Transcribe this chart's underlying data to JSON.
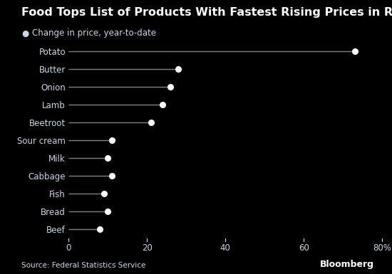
{
  "title": "Food Tops List of Products With Fastest Rising Prices in Russia",
  "subtitle_bullet": "●",
  "subtitle_text": " Change in price, year-to-date",
  "categories": [
    "Potato",
    "Butter",
    "Onion",
    "Lamb",
    "Beetroot",
    "Sour cream",
    "Milk",
    "Cabbage",
    "Fish",
    "Bread",
    "Beef"
  ],
  "values": [
    73,
    28,
    26,
    24,
    21,
    11,
    10,
    11,
    9,
    10,
    8
  ],
  "source": "Source: Federal Statistics Service",
  "watermark": "Bloomberg",
  "xlim": [
    0,
    80
  ],
  "xticks": [
    0,
    20,
    40,
    60,
    80
  ],
  "xtick_labels": [
    "0",
    "20",
    "40",
    "60",
    "80%"
  ],
  "background_color": "#000000",
  "title_color": "#ffffff",
  "subtitle_color": "#c8d8e8",
  "label_color": "#c8d8e8",
  "tick_color": "#c8d8e8",
  "line_color": "#808080",
  "dot_color": "#ffffff",
  "source_color": "#c8d8e8",
  "watermark_color": "#ffffff",
  "title_fontsize": 11.5,
  "subtitle_fontsize": 8.5,
  "label_fontsize": 8.5,
  "tick_fontsize": 8.5,
  "source_fontsize": 7.5,
  "watermark_fontsize": 9
}
